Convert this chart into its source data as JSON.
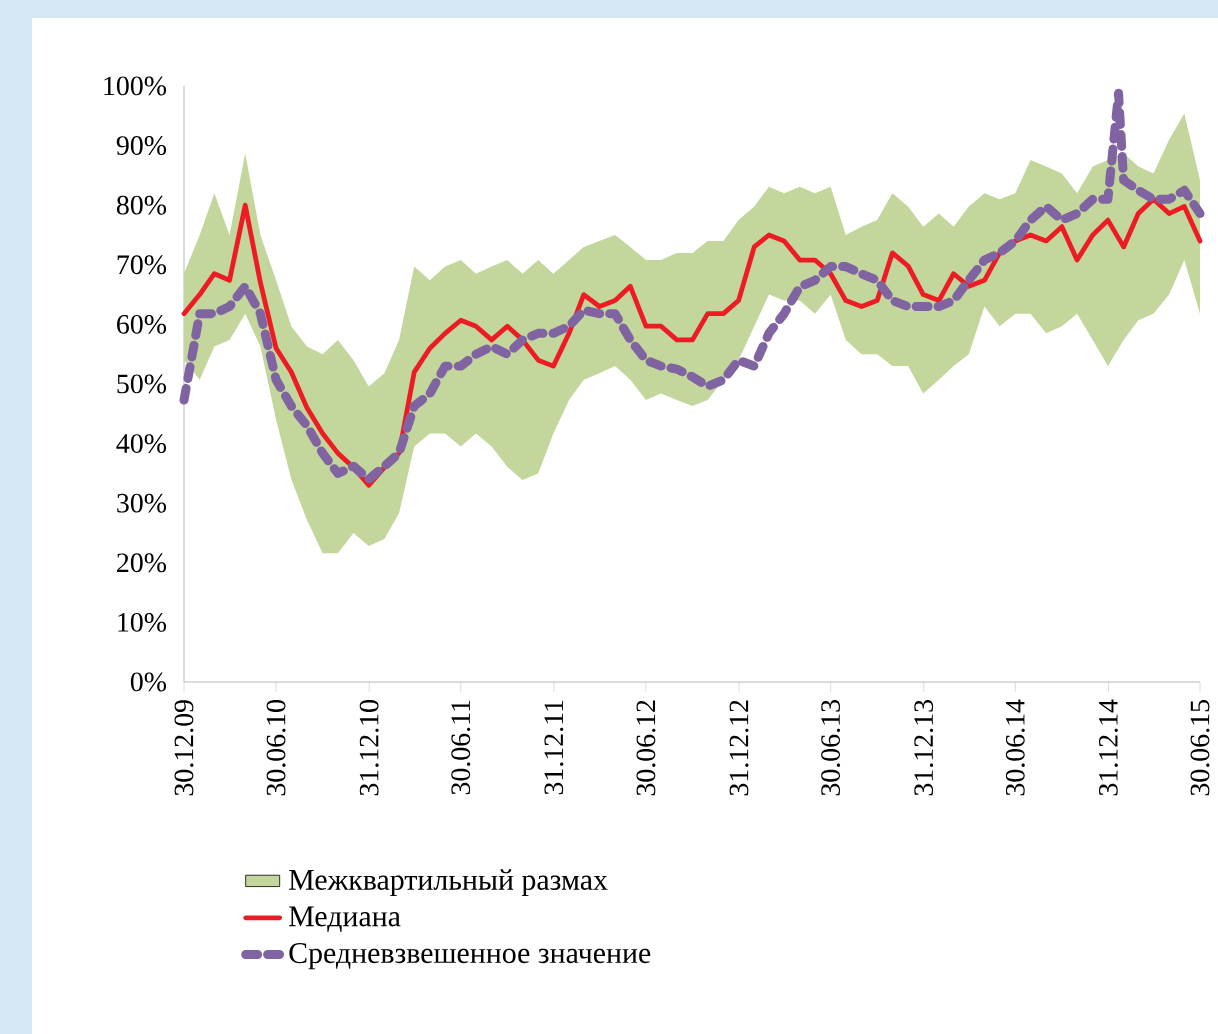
{
  "chart_data": {
    "type": "line",
    "x": [
      "2009-12-30",
      "2010-01-30",
      "2010-02-28",
      "2010-03-30",
      "2010-04-30",
      "2010-05-30",
      "2010-06-30",
      "2010-07-30",
      "2010-08-30",
      "2010-09-30",
      "2010-10-30",
      "2010-11-30",
      "2010-12-30",
      "2011-01-30",
      "2011-02-28",
      "2011-03-30",
      "2011-04-30",
      "2011-05-30",
      "2011-06-30",
      "2011-07-30",
      "2011-08-30",
      "2011-09-30",
      "2011-10-30",
      "2011-11-30",
      "2011-12-30",
      "2012-01-30",
      "2012-02-28",
      "2012-03-30",
      "2012-04-30",
      "2012-05-30",
      "2012-06-30",
      "2012-07-30",
      "2012-08-30",
      "2012-09-30",
      "2012-10-30",
      "2012-11-30",
      "2012-12-30",
      "2013-01-30",
      "2013-02-28",
      "2013-03-30",
      "2013-04-30",
      "2013-05-30",
      "2013-06-30",
      "2013-07-30",
      "2013-08-30",
      "2013-09-30",
      "2013-10-30",
      "2013-11-30",
      "2013-12-30",
      "2014-01-30",
      "2014-02-28",
      "2014-03-30",
      "2014-04-30",
      "2014-05-30",
      "2014-06-30",
      "2014-07-30",
      "2014-08-30",
      "2014-09-30",
      "2014-10-30",
      "2014-11-30",
      "2014-12-30",
      "2015-01-30",
      "2015-02-28",
      "2015-03-30",
      "2015-04-30",
      "2015-05-30",
      "2015-06-30"
    ],
    "xlim": [
      "2009-12-30",
      "2015-06-30"
    ],
    "xticks": [
      {
        "value": "2009-12-30",
        "label": "30.12.09"
      },
      {
        "value": "2010-06-30",
        "label": "30.06.10"
      },
      {
        "value": "2010-12-31",
        "label": "31.12.10"
      },
      {
        "value": "2011-06-30",
        "label": "30.06.11"
      },
      {
        "value": "2011-12-31",
        "label": "31.12.11"
      },
      {
        "value": "2012-06-30",
        "label": "30.06.12"
      },
      {
        "value": "2012-12-31",
        "label": "31.12.12"
      },
      {
        "value": "2013-06-30",
        "label": "30.06.13"
      },
      {
        "value": "2013-12-31",
        "label": "31.12.13"
      },
      {
        "value": "2014-06-30",
        "label": "30.06.14"
      },
      {
        "value": "2014-12-31",
        "label": "31.12.14"
      },
      {
        "value": "2015-06-30",
        "label": "30.06.15"
      }
    ],
    "ylim": [
      0,
      100
    ],
    "yticks": [
      {
        "value": 0,
        "label": "0%"
      },
      {
        "value": 10,
        "label": "10%"
      },
      {
        "value": 20,
        "label": "20%"
      },
      {
        "value": 30,
        "label": "30%"
      },
      {
        "value": 40,
        "label": "40%"
      },
      {
        "value": 50,
        "label": "50%"
      },
      {
        "value": 60,
        "label": "60%"
      },
      {
        "value": 70,
        "label": "70%"
      },
      {
        "value": 80,
        "label": "80%"
      },
      {
        "value": 90,
        "label": "90%"
      },
      {
        "value": 100,
        "label": "100%"
      }
    ],
    "legend": "bottom",
    "series": [
      {
        "name": "Межквартильный размах",
        "type": "area",
        "color": "#c3d69b",
        "values": [
          null,
          null,
          null,
          null,
          null,
          null,
          null,
          null,
          null,
          null,
          null,
          null,
          null,
          null,
          null,
          null,
          null,
          null,
          null,
          null,
          null,
          null,
          null,
          null,
          null,
          null,
          null,
          null,
          null,
          null,
          null,
          null,
          null,
          null,
          null,
          null,
          null,
          null,
          null,
          null,
          null,
          null,
          null,
          null,
          null,
          null,
          null,
          null,
          null,
          null,
          null,
          null,
          null,
          null,
          null,
          null,
          null,
          null,
          null,
          null,
          null,
          null,
          null,
          null,
          null,
          null,
          null
        ],
        "lower": [
          54,
          50.7,
          56.3,
          57.4,
          61.8,
          56.3,
          44,
          34,
          27.2,
          21.6,
          21.6,
          25,
          22.8,
          24,
          28.3,
          39.5,
          41.7,
          41.7,
          39.5,
          41.7,
          39.5,
          36.1,
          33.9,
          35,
          41.7,
          47.3,
          50.7,
          51.8,
          53,
          50.7,
          47.3,
          48.4,
          47.3,
          46.3,
          47.3,
          50.7,
          54,
          59.7,
          65,
          64,
          64,
          61.8,
          65,
          57.4,
          55,
          55,
          53,
          53,
          48.4,
          50.7,
          53,
          55,
          63,
          59.7,
          61.8,
          61.8,
          58.5,
          59.7,
          61.8,
          57.4,
          53,
          57.4,
          60.7,
          61.8,
          65,
          70.8,
          61.8
        ],
        "upper": [
          68.5,
          75,
          82,
          75,
          88.7,
          75,
          67.4,
          59.7,
          56.3,
          55,
          57.4,
          54,
          49.6,
          51.8,
          57.4,
          69.7,
          67.4,
          69.7,
          70.8,
          68.5,
          69.7,
          70.8,
          68.5,
          70.8,
          68.5,
          70.8,
          73,
          74,
          75,
          73,
          70.8,
          70.8,
          72,
          72,
          74,
          74,
          77.5,
          79.8,
          83.1,
          82,
          83.1,
          82,
          83.1,
          75,
          76.4,
          77.5,
          82,
          79.8,
          76.4,
          78.6,
          76.4,
          79.8,
          82,
          81,
          82,
          87.6,
          86.5,
          85.3,
          82,
          86.5,
          87.6,
          88.7,
          86.5,
          85.3,
          91,
          95.4,
          84.2
        ]
      },
      {
        "name": "Медиана",
        "type": "line",
        "color": "#ed1c24",
        "line_style": "solid",
        "values": [
          61.8,
          65,
          68.5,
          67.4,
          80,
          67,
          56,
          52,
          46,
          41.7,
          38.4,
          36,
          33,
          36,
          38.4,
          52,
          56,
          58.5,
          60.7,
          59.7,
          57.4,
          59.7,
          57.4,
          54,
          53,
          58.5,
          65,
          63,
          64,
          66.4,
          59.7,
          59.7,
          57.4,
          57.4,
          61.8,
          61.8,
          64,
          73,
          75,
          74,
          70.8,
          70.8,
          68.5,
          64,
          63,
          64,
          72,
          69.8,
          65,
          64,
          68.5,
          66.4,
          67.4,
          72,
          74,
          75,
          74,
          76.4,
          70.8,
          75,
          77.5,
          73,
          78.6,
          81,
          78.6,
          79.8,
          74
        ]
      },
      {
        "name": "Средневзвешенное значение",
        "type": "line",
        "color": "#8064a2",
        "line_style": "dashed",
        "x": [
          "2009-12-30",
          "2010-01-30",
          "2010-02-28",
          "2010-03-30",
          "2010-04-30",
          "2010-05-30",
          "2010-06-30",
          "2010-07-30",
          "2010-08-30",
          "2010-09-30",
          "2010-10-30",
          "2010-11-30",
          "2010-12-30",
          "2011-01-30",
          "2011-02-28",
          "2011-03-30",
          "2011-04-30",
          "2011-05-30",
          "2011-06-30",
          "2011-07-30",
          "2011-08-30",
          "2011-09-30",
          "2011-10-30",
          "2011-11-30",
          "2011-12-30",
          "2012-01-30",
          "2012-02-28",
          "2012-03-30",
          "2012-04-30",
          "2012-05-30",
          "2012-06-30",
          "2012-07-30",
          "2012-08-30",
          "2012-09-30",
          "2012-10-30",
          "2012-11-30",
          "2012-12-30",
          "2013-01-30",
          "2013-02-28",
          "2013-03-30",
          "2013-04-30",
          "2013-05-30",
          "2013-06-30",
          "2013-07-30",
          "2013-08-30",
          "2013-09-30",
          "2013-10-30",
          "2013-11-30",
          "2013-12-30",
          "2014-01-30",
          "2014-02-28",
          "2014-03-30",
          "2014-04-30",
          "2014-05-30",
          "2014-06-30",
          "2014-07-30",
          "2014-08-30",
          "2014-09-30",
          "2014-10-30",
          "2014-11-30",
          "2014-12-30",
          "2015-01-20",
          "2015-01-30",
          "2015-02-28",
          "2015-03-30",
          "2015-04-30",
          "2015-05-30",
          "2015-06-30"
        ],
        "values": [
          47.3,
          61.8,
          61.8,
          63,
          66.4,
          61.8,
          50.7,
          46.3,
          43,
          38.4,
          35,
          36.2,
          34,
          36.2,
          38.4,
          46.3,
          48.4,
          53,
          53,
          55,
          56.3,
          55,
          57.4,
          58.5,
          58.5,
          59.7,
          62.4,
          61.8,
          61.8,
          57.4,
          54,
          53,
          52.5,
          51.2,
          49.6,
          50.7,
          54,
          53,
          58.5,
          61.8,
          66.3,
          67.4,
          69.7,
          69.7,
          68.5,
          67.4,
          64,
          63,
          63,
          63,
          64,
          67.4,
          70.8,
          72,
          74,
          77.5,
          79.8,
          77.5,
          78.6,
          81,
          81,
          98.8,
          84.2,
          82.5,
          81,
          81,
          82.5,
          78.6
        ]
      }
    ]
  }
}
